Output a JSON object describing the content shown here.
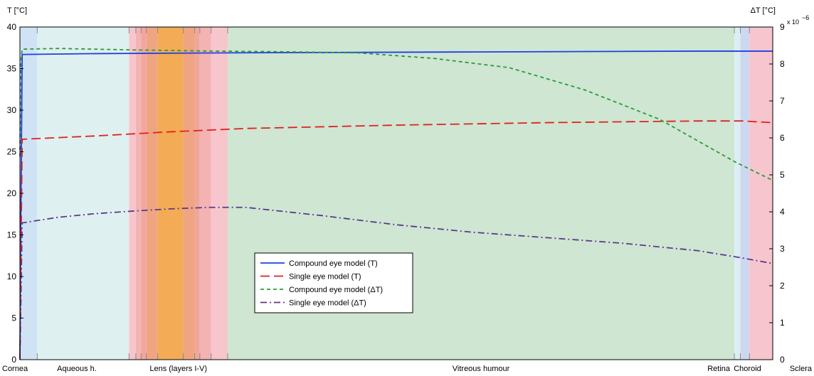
{
  "chart_data": {
    "type": "line",
    "title": "",
    "left_axis": {
      "label": "T [°C]",
      "ylim": [
        0,
        40
      ],
      "ticks": [
        "0",
        "5",
        "10",
        "15",
        "20",
        "25",
        "30",
        "35",
        "40"
      ]
    },
    "right_axis": {
      "label": "ΔT [°C]",
      "ylim": [
        0,
        9
      ],
      "ticks": [
        "0",
        "1",
        "2",
        "3",
        "4",
        "5",
        "6",
        "7",
        "8",
        "9"
      ],
      "exponent_base": "x 10",
      "exponent_power": "−6"
    },
    "xlim": [
      0,
      1000
    ],
    "regions": [
      {
        "name": "Cornea",
        "label": "Cornea",
        "start": 0,
        "end": 23,
        "color": "#cfe3f4"
      },
      {
        "name": "Aqueous humour",
        "label": "Aqueous h.",
        "start": 23,
        "end": 145,
        "color": "#dff0f0"
      },
      {
        "name": "Lens layer I (outer)",
        "label": "",
        "start": 145,
        "end": 154,
        "color": "#f7c6cc"
      },
      {
        "name": "Lens layer II (outer)",
        "label": "",
        "start": 154,
        "end": 161,
        "color": "#f3b3b3"
      },
      {
        "name": "Lens layer III (outer)",
        "label": "",
        "start": 161,
        "end": 168,
        "color": "#efa79d"
      },
      {
        "name": "Lens layer IV (outer)",
        "label": "",
        "start": 168,
        "end": 183,
        "color": "#f0a582"
      },
      {
        "name": "Lens layer V (core)",
        "label": "",
        "start": 183,
        "end": 217,
        "color": "#f3ab55"
      },
      {
        "name": "Lens layer IV (inner)",
        "label": "",
        "start": 217,
        "end": 232,
        "color": "#f0a582"
      },
      {
        "name": "Lens layer III (inner)",
        "label": "",
        "start": 232,
        "end": 239,
        "color": "#efa79d"
      },
      {
        "name": "Lens layer II (inner)",
        "label": "",
        "start": 239,
        "end": 254,
        "color": "#f3b3b3"
      },
      {
        "name": "Lens layer I (inner)",
        "label": "",
        "start": 254,
        "end": 276,
        "color": "#f7c6cc"
      },
      {
        "name": "Vitreous humour",
        "label": "Vitreous humour",
        "start": 276,
        "end": 949,
        "color": "#cee6d2"
      },
      {
        "name": "Retina",
        "label": "Retina",
        "start": 949,
        "end": 957,
        "color": "#dceef4"
      },
      {
        "name": "Choroid",
        "label": "Choroid",
        "start": 957,
        "end": 969,
        "color": "#cdd8f0"
      },
      {
        "name": "Sclera",
        "label": "Sclera",
        "start": 969,
        "end": 1000,
        "color": "#f6c5cd"
      }
    ],
    "lens_group_label": "Lens (layers I-V)",
    "lens_group_range": [
      145,
      276
    ],
    "region_boundaries": [
      23,
      145,
      154,
      161,
      168,
      183,
      217,
      232,
      239,
      254,
      276,
      949,
      957,
      969
    ],
    "series": [
      {
        "name": "Compound eye model (T)",
        "axis": "left",
        "color": "#1f3fe0",
        "dash": "solid",
        "x": [
          0,
          1,
          3,
          100,
          300,
          600,
          900,
          1000
        ],
        "y": [
          0,
          15,
          36.7,
          36.8,
          36.9,
          37.0,
          37.1,
          37.1
        ]
      },
      {
        "name": "Single eye model (T)",
        "axis": "left",
        "color": "#e02020",
        "dash": "longdash",
        "x": [
          0,
          3,
          100,
          200,
          300,
          500,
          700,
          900,
          960,
          1000
        ],
        "y": [
          0,
          26.5,
          26.9,
          27.4,
          27.8,
          28.2,
          28.5,
          28.7,
          28.7,
          28.5
        ]
      },
      {
        "name": "Compound eye model (ΔT)",
        "axis": "right",
        "color": "#2e9a3a",
        "dash": "shortdash",
        "x": [
          0,
          1,
          3,
          50,
          150,
          250,
          350,
          450,
          550,
          650,
          750,
          850,
          950,
          1000
        ],
        "y": [
          5.5,
          8.0,
          8.4,
          8.42,
          8.38,
          8.35,
          8.33,
          8.3,
          8.15,
          7.9,
          7.3,
          6.5,
          5.35,
          4.85
        ]
      },
      {
        "name": "Single eye model (ΔT)",
        "axis": "right",
        "color": "#5a3a8a",
        "dash": "dashdot",
        "x": [
          0,
          3,
          50,
          100,
          150,
          200,
          250,
          300,
          400,
          500,
          600,
          700,
          800,
          900,
          960,
          1000
        ],
        "y": [
          0,
          3.7,
          3.85,
          3.95,
          4.02,
          4.08,
          4.12,
          4.12,
          3.9,
          3.65,
          3.45,
          3.3,
          3.15,
          2.95,
          2.75,
          2.6
        ]
      }
    ],
    "legend": {
      "placement": "center-left",
      "entries": [
        "Compound eye model (T)",
        "Single eye model (T)",
        "Compound eye model (ΔT)",
        "Single eye model (ΔT)"
      ]
    }
  }
}
